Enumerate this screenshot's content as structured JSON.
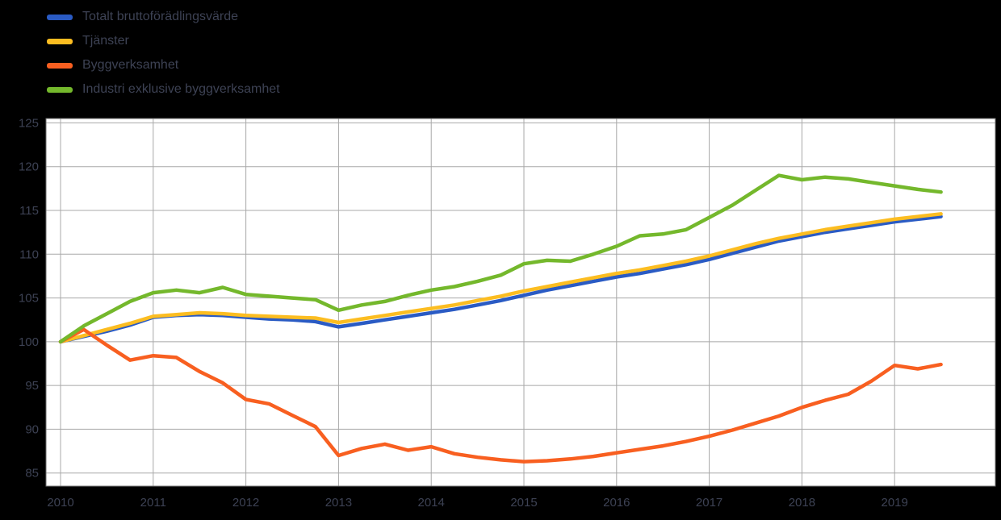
{
  "colors": {
    "page_background": "#000000",
    "plot_background": "#ffffff",
    "grid": "#a8a8a8",
    "plot_border": "#6f6f6f",
    "axis_text": "#3d4254",
    "legend_text": "#3d4254"
  },
  "chart_data": {
    "type": "line",
    "title": "",
    "xlabel": "",
    "ylabel": "",
    "grid": true,
    "legend_position": "top-left",
    "ylim": [
      83.5,
      125.5
    ],
    "y_ticks": [
      85,
      90,
      95,
      100,
      105,
      110,
      115,
      120,
      125
    ],
    "x_tick_labels": [
      "2010",
      "2011",
      "2012",
      "2013",
      "2014",
      "2015",
      "2016",
      "2017",
      "2018",
      "2019"
    ],
    "x_start": "2010 Q1",
    "points_per_year": 4,
    "index_base": "2010 = 100",
    "series": [
      {
        "name": "Totalt bruttoförädlingsvärde",
        "color": "#2a5bc4",
        "values": [
          100.0,
          100.6,
          101.2,
          101.9,
          102.8,
          103.0,
          103.1,
          103.0,
          102.8,
          102.6,
          102.5,
          102.3,
          101.7,
          102.1,
          102.5,
          102.9,
          103.3,
          103.7,
          104.2,
          104.7,
          105.3,
          105.9,
          106.4,
          106.9,
          107.4,
          107.8,
          108.3,
          108.8,
          109.4,
          110.1,
          110.8,
          111.5,
          112.0,
          112.5,
          112.9,
          113.3,
          113.7,
          114.0,
          114.3
        ]
      },
      {
        "name": "Tjänster",
        "color": "#fcbd21",
        "values": [
          100.0,
          100.7,
          101.4,
          102.1,
          102.9,
          103.1,
          103.3,
          103.2,
          103.0,
          102.9,
          102.8,
          102.7,
          102.2,
          102.6,
          103.0,
          103.4,
          103.8,
          104.2,
          104.7,
          105.2,
          105.8,
          106.3,
          106.8,
          107.3,
          107.8,
          108.2,
          108.7,
          109.2,
          109.8,
          110.5,
          111.2,
          111.8,
          112.3,
          112.8,
          113.2,
          113.6,
          114.0,
          114.3,
          114.6
        ]
      },
      {
        "name": "Byggverksamhet",
        "color": "#f85f20",
        "values": [
          100.0,
          101.4,
          99.6,
          97.9,
          98.4,
          98.2,
          96.6,
          95.3,
          93.4,
          92.9,
          91.6,
          90.3,
          87.0,
          87.8,
          88.3,
          87.6,
          88.0,
          87.2,
          86.8,
          86.5,
          86.3,
          86.4,
          86.6,
          86.9,
          87.3,
          87.7,
          88.1,
          88.6,
          89.2,
          89.9,
          90.7,
          91.5,
          92.5,
          93.3,
          94.0,
          95.5,
          97.3,
          96.9,
          97.4
        ]
      },
      {
        "name": "Industri exklusive byggverksamhet",
        "color": "#74b82c",
        "values": [
          100.0,
          101.8,
          103.2,
          104.6,
          105.6,
          105.9,
          105.6,
          106.2,
          105.4,
          105.2,
          105.0,
          104.8,
          103.6,
          104.2,
          104.6,
          105.3,
          105.9,
          106.3,
          106.9,
          107.6,
          108.9,
          109.3,
          109.2,
          110.0,
          110.9,
          112.1,
          112.3,
          112.8,
          114.2,
          115.6,
          117.3,
          119.0,
          118.5,
          118.8,
          118.6,
          118.2,
          117.8,
          117.4,
          117.1
        ]
      }
    ]
  }
}
